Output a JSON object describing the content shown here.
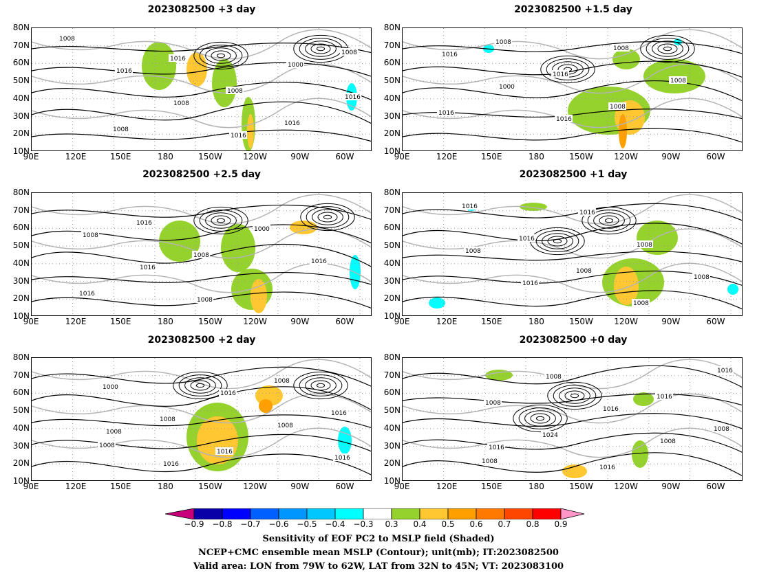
{
  "panels": [
    {
      "title": "2023082500  +3 day",
      "contours": [
        "1008",
        "1016",
        "1008",
        "1016",
        "1000",
        "1016",
        "1008",
        "1016",
        "1008",
        "1016",
        "1008"
      ]
    },
    {
      "title": "2023082500  +1.5 day",
      "contours": [
        "1016",
        "1000",
        "1016",
        "1008",
        "1008",
        "1016",
        "1008",
        "1016",
        "1008"
      ]
    },
    {
      "title": "2023082500  +2.5 day",
      "contours": [
        "1008",
        "1016",
        "1008",
        "1000",
        "1016",
        "1016",
        "1016",
        "1008"
      ]
    },
    {
      "title": "2023082500  +1 day",
      "contours": [
        "1008",
        "1016",
        "1016",
        "1008",
        "1008",
        "1016",
        "1016",
        "1008",
        "1008"
      ]
    },
    {
      "title": "2023082500  +2 day",
      "contours": [
        "1008",
        "1016",
        "1016",
        "1008",
        "1016",
        "1000",
        "1008",
        "1016",
        "1008",
        "1016",
        "1008"
      ]
    },
    {
      "title": "2023082500  +0 day",
      "contours": [
        "1016",
        "1008",
        "1016",
        "1008",
        "1016",
        "1008",
        "1024",
        "1016",
        "1016",
        "1008",
        "1008"
      ]
    }
  ],
  "lat_labels": [
    "80N",
    "70N",
    "60N",
    "50N",
    "40N",
    "30N",
    "20N",
    "10N"
  ],
  "lon_labels": [
    "90E",
    "120E",
    "150E",
    "180",
    "150W",
    "120W",
    "90W",
    "60W"
  ],
  "colorbar": {
    "colors": [
      "#c8007c",
      "#0a00a8",
      "#0000ff",
      "#0060ff",
      "#0096ff",
      "#00c8ff",
      "#00ffff",
      "#ffffff",
      "#96d22d",
      "#ffc832",
      "#ffa000",
      "#ff7800",
      "#ff4600",
      "#ff0000",
      "#ff96c8"
    ],
    "labels": [
      "−0.9",
      "−0.8",
      "−0.7",
      "−0.6",
      "−0.5",
      "−0.4",
      "−0.3",
      "0.3",
      "0.4",
      "0.5",
      "0.6",
      "0.7",
      "0.8",
      "0.9"
    ]
  },
  "caption": {
    "line1": "Sensitivity of EOF PC2 to MSLP field (Shaded)",
    "line2": "NCEP+CMC ensemble mean MSLP (Contour); unit(mb); IT:2023082500",
    "line3": "Valid area: LON from 79W to 62W, LAT from 32N to 45N; VT: 2023083100"
  }
}
